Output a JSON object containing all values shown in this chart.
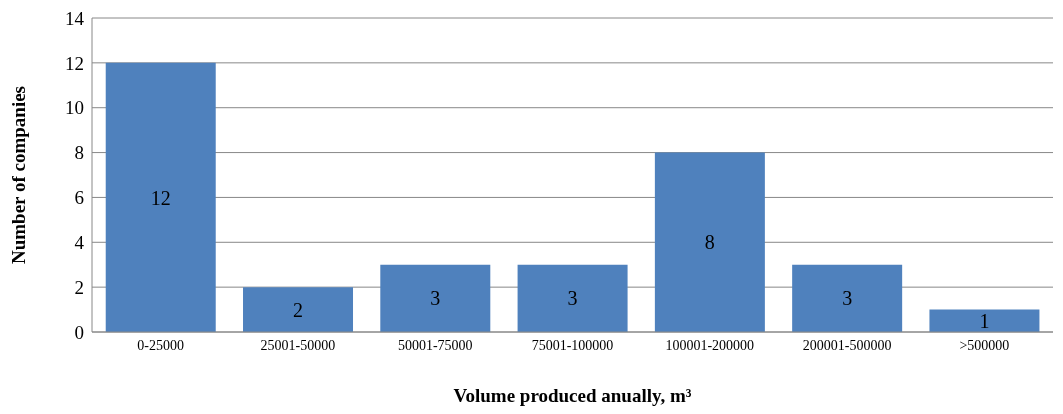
{
  "chart_data": {
    "type": "bar",
    "xlabel": "Volume produced anually, m³",
    "ylabel": "Number of companies",
    "categories": [
      "0-25000",
      "25001-50000",
      "50001-75000",
      "75001-100000",
      "100001-200000",
      "200001-500000",
      ">500000"
    ],
    "values": [
      12,
      2,
      3,
      3,
      8,
      3,
      1
    ],
    "color": "#4f81bd",
    "ylim": [
      0,
      14
    ],
    "yticks": [
      0,
      2,
      4,
      6,
      8,
      10,
      12,
      14
    ],
    "grid": "y",
    "data_labels": true
  }
}
